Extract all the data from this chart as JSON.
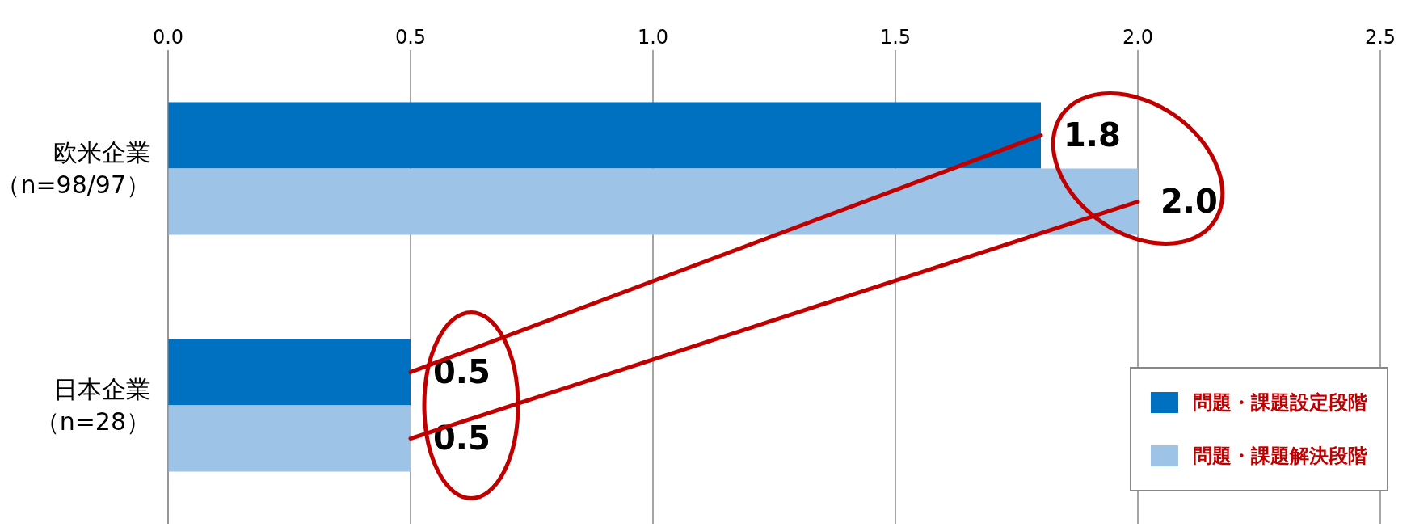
{
  "chart_data": {
    "type": "bar",
    "orientation": "horizontal",
    "categories": [
      "欧米企業（n=98/97）",
      "日本企業（n=28）"
    ],
    "series": [
      {
        "name": "問題・課題設定段階",
        "color": "#0070c0",
        "values": [
          1.8,
          0.5
        ],
        "value_labels": [
          "1.8",
          "0.5"
        ]
      },
      {
        "name": "問題・課題解決段階",
        "color": "#9dc3e6",
        "values": [
          2.0,
          0.5
        ],
        "value_labels": [
          "2.0",
          "0.5"
        ]
      }
    ],
    "xlim": [
      0,
      2.5
    ],
    "xticks": [
      "0.0",
      0.5,
      "1.0",
      1.5,
      "2.0",
      2.5
    ],
    "grid": "x",
    "legend": "bottom right"
  }
}
